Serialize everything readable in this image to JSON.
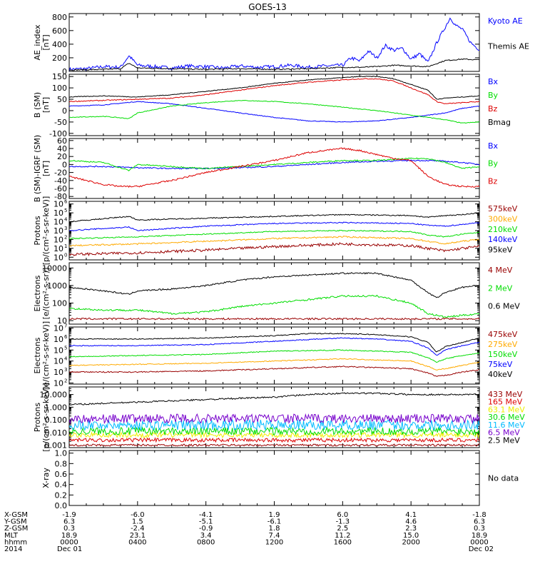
{
  "title": "GOES-13",
  "no_data_label": "No data",
  "colors": {
    "black": "#000000",
    "blue": "#0000ff",
    "green": "#00dd00",
    "red": "#dd0000",
    "orange": "#ffaa00",
    "darkred": "#990000",
    "cyan": "#00bbff",
    "purple": "#7700cc",
    "yellow": "#eeee00",
    "teal": "#009999",
    "darkblue": "#0000cc"
  },
  "footer": {
    "row_labels": [
      "X-GSM",
      "Y-GSM",
      "Z-GSM",
      "MLT",
      "hhmm",
      "2014"
    ],
    "columns": [
      [
        "-1.9",
        "6.3",
        "0.3",
        "18.9",
        "0000",
        "Dec 01"
      ],
      [
        "-6.0",
        "1.5",
        "-2.4",
        "23.1",
        "0400",
        ""
      ],
      [
        "-4.1",
        "-5.1",
        "-0.9",
        "3.4",
        "0800",
        ""
      ],
      [
        "1.9",
        "-6.1",
        "1.8",
        "7.4",
        "1200",
        ""
      ],
      [
        "6.0",
        "-1.3",
        "2.5",
        "11.2",
        "1600",
        ""
      ],
      [
        "4.1",
        "4.6",
        "2.3",
        "15.0",
        "2000",
        ""
      ],
      [
        "-1.8",
        "6.3",
        "0.3",
        "18.9",
        "0000",
        "Dec 02"
      ]
    ]
  },
  "chart_data": [
    {
      "type": "line",
      "ylabel": [
        "AE_index",
        "[nT]"
      ],
      "yticks": [
        "0",
        "200",
        "400",
        "600",
        "800"
      ],
      "ylim": [
        0,
        850
      ],
      "x_hours": [
        0,
        24
      ],
      "series": [
        {
          "name": "Kyoto AE",
          "color": "blue",
          "x": [
            0,
            1,
            2,
            3,
            3.5,
            4,
            5,
            6,
            7,
            8,
            9,
            10,
            11,
            12,
            13,
            14,
            15,
            16,
            16.5,
            17,
            17.5,
            18,
            18.5,
            19,
            19.5,
            20,
            20.5,
            21,
            21.5,
            22,
            22.3,
            22.6,
            23,
            23.5,
            24
          ],
          "y": [
            30,
            40,
            70,
            60,
            230,
            90,
            70,
            50,
            80,
            70,
            50,
            80,
            60,
            70,
            90,
            60,
            80,
            90,
            200,
            150,
            300,
            200,
            380,
            310,
            340,
            180,
            260,
            130,
            420,
            650,
            790,
            680,
            620,
            420,
            320
          ]
        },
        {
          "name": "Themis AE",
          "color": "black",
          "x": [
            0,
            2,
            3,
            3.5,
            4,
            6,
            8,
            10,
            12,
            14,
            16,
            17,
            18,
            19,
            20,
            21,
            22,
            23,
            24
          ],
          "y": [
            20,
            30,
            40,
            120,
            50,
            40,
            30,
            40,
            30,
            40,
            60,
            60,
            70,
            90,
            80,
            70,
            160,
            180,
            170
          ]
        }
      ]
    },
    {
      "type": "line",
      "ylabel": [
        "B (SM)",
        "[nT]"
      ],
      "yticks": [
        "-100",
        "-50",
        "0",
        "50",
        "100",
        "150"
      ],
      "ylim": [
        -110,
        160
      ],
      "x_hours": [
        0,
        24
      ],
      "series": [
        {
          "name": "Bx",
          "color": "blue",
          "x": [
            0,
            2,
            4,
            6,
            8,
            10,
            12,
            14,
            16,
            18,
            20,
            21,
            22,
            23,
            24
          ],
          "y": [
            20,
            25,
            40,
            30,
            10,
            -10,
            -30,
            -45,
            -50,
            -45,
            -30,
            -20,
            -10,
            10,
            20
          ]
        },
        {
          "name": "By",
          "color": "green",
          "x": [
            0,
            2,
            3.5,
            4,
            6,
            8,
            10,
            12,
            14,
            16,
            18,
            20,
            21,
            22,
            23,
            24
          ],
          "y": [
            -30,
            -25,
            -35,
            -10,
            20,
            35,
            45,
            40,
            30,
            15,
            0,
            -20,
            -30,
            -40,
            -55,
            -50
          ]
        },
        {
          "name": "Bz",
          "color": "red",
          "x": [
            0,
            2,
            4,
            6,
            8,
            10,
            12,
            14,
            16,
            17,
            18,
            19,
            20,
            21,
            21.5,
            22,
            23,
            24
          ],
          "y": [
            40,
            45,
            50,
            55,
            70,
            90,
            110,
            125,
            135,
            140,
            140,
            130,
            100,
            70,
            40,
            30,
            35,
            40
          ]
        },
        {
          "name": "Bmag",
          "color": "black",
          "x": [
            0,
            2,
            4,
            6,
            8,
            10,
            12,
            14,
            16,
            17,
            18,
            19,
            20,
            21,
            21.5,
            22,
            23,
            24
          ],
          "y": [
            60,
            65,
            60,
            70,
            85,
            100,
            120,
            135,
            145,
            150,
            150,
            140,
            115,
            90,
            50,
            55,
            60,
            65
          ]
        }
      ]
    },
    {
      "type": "line",
      "ylabel": [
        "B (SM)-IGRF (SM)",
        "[nT]"
      ],
      "yticks": [
        "-80",
        "-60",
        "-40",
        "-20",
        "0",
        "20",
        "40",
        "60"
      ],
      "ylim": [
        -85,
        65
      ],
      "x_hours": [
        0,
        24
      ],
      "series": [
        {
          "name": "Bx",
          "color": "blue",
          "x": [
            0,
            2,
            4,
            6,
            8,
            10,
            12,
            14,
            16,
            18,
            20,
            21,
            22,
            23,
            24
          ],
          "y": [
            -5,
            -5,
            -8,
            -10,
            -10,
            -8,
            -5,
            0,
            5,
            8,
            10,
            10,
            8,
            5,
            0
          ]
        },
        {
          "name": "By",
          "color": "green",
          "x": [
            0,
            2,
            3.5,
            4,
            6,
            8,
            10,
            12,
            14,
            16,
            18,
            20,
            21,
            22,
            23,
            24
          ],
          "y": [
            10,
            5,
            -15,
            0,
            -5,
            -10,
            -5,
            0,
            5,
            10,
            10,
            15,
            15,
            5,
            -10,
            -5
          ]
        },
        {
          "name": "Bz",
          "color": "red",
          "x": [
            0,
            1,
            2,
            3,
            4,
            6,
            8,
            10,
            12,
            13,
            14,
            15,
            16,
            17,
            18,
            19,
            20,
            21,
            22,
            23,
            24
          ],
          "y": [
            -30,
            -40,
            -50,
            -55,
            -55,
            -40,
            -20,
            -5,
            10,
            20,
            30,
            35,
            40,
            35,
            25,
            15,
            10,
            -30,
            -50,
            -55,
            -55
          ]
        }
      ]
    },
    {
      "type": "line",
      "log": true,
      "ylabel": [
        "Protons",
        "[p/(cm²-s-sr-keV)]"
      ],
      "ytick_exps": [
        0,
        1,
        2,
        3,
        4,
        5,
        6
      ],
      "ylim_log": [
        -0.3,
        6.3
      ],
      "x_hours": [
        0,
        24
      ],
      "series": [
        {
          "name": "575keV",
          "color": "darkred",
          "x": [
            0,
            4,
            8,
            12,
            16,
            20,
            21,
            22,
            23,
            24
          ],
          "y": [
            0.3,
            0.5,
            0.8,
            1.2,
            1.5,
            1.3,
            1.0,
            0.7,
            1.0,
            1.2
          ]
        },
        {
          "name": "300keV",
          "color": "orange",
          "x": [
            0,
            4,
            8,
            12,
            16,
            20,
            21,
            22,
            23,
            24
          ],
          "y": [
            1.3,
            1.5,
            1.8,
            2.1,
            2.3,
            2.1,
            1.8,
            1.5,
            1.8,
            2.0
          ]
        },
        {
          "name": "210keV",
          "color": "green",
          "x": [
            0,
            4,
            8,
            12,
            16,
            20,
            21,
            22,
            23,
            24
          ],
          "y": [
            2.1,
            2.3,
            2.6,
            2.9,
            3.0,
            2.9,
            2.5,
            2.3,
            2.6,
            2.8
          ]
        },
        {
          "name": "140keV",
          "color": "blue",
          "x": [
            0,
            3.5,
            4,
            8,
            12,
            16,
            20,
            21,
            22,
            23,
            24
          ],
          "y": [
            3.0,
            3.4,
            3.0,
            3.5,
            3.8,
            3.9,
            3.8,
            3.6,
            3.5,
            3.7,
            3.9
          ]
        },
        {
          "name": "95keV",
          "color": "black",
          "x": [
            0,
            3.5,
            4,
            8,
            12,
            16,
            20,
            21,
            22,
            23,
            24
          ],
          "y": [
            4.0,
            4.6,
            4.2,
            4.4,
            4.6,
            4.8,
            4.7,
            4.5,
            4.7,
            4.8,
            5.0
          ]
        }
      ]
    },
    {
      "type": "line",
      "log": true,
      "ylabel": [
        "Electrons",
        "[e/(cm²-s-sr)]"
      ],
      "ytick_exps": [
        1,
        2,
        3,
        4
      ],
      "ytick_labels": [
        "10",
        "100",
        "1000",
        "10000"
      ],
      "ylim_log": [
        0.8,
        4.3
      ],
      "x_hours": [
        0,
        24
      ],
      "series": [
        {
          "name": "4 MeV",
          "color": "darkred",
          "x": [
            0,
            24
          ],
          "y": [
            1.1,
            1.1
          ]
        },
        {
          "name": "2 MeV",
          "color": "green",
          "x": [
            0,
            2,
            4,
            6,
            8,
            10,
            12,
            14,
            16,
            18,
            20,
            21,
            22,
            23,
            24
          ],
          "y": [
            1.7,
            1.6,
            1.6,
            1.4,
            1.5,
            1.8,
            2.0,
            2.2,
            2.4,
            2.4,
            2.0,
            1.4,
            1.2,
            1.3,
            1.4
          ]
        },
        {
          "name": "0.6 MeV",
          "color": "black",
          "x": [
            0,
            2,
            3.5,
            4,
            6,
            8,
            10,
            12,
            14,
            16,
            18,
            20,
            21,
            21.5,
            22,
            23,
            24
          ],
          "y": [
            2.9,
            2.7,
            2.5,
            2.7,
            2.8,
            3.0,
            3.3,
            3.5,
            3.6,
            3.7,
            3.7,
            3.3,
            2.6,
            2.3,
            2.6,
            2.9,
            3.0
          ]
        }
      ]
    },
    {
      "type": "line",
      "log": true,
      "ylabel": [
        "Electrons",
        "[e/(cm²-s-sr-keV)]"
      ],
      "ytick_exps": [
        2,
        3,
        4,
        5,
        6,
        7
      ],
      "ylim_log": [
        1.9,
        7.1
      ],
      "x_hours": [
        0,
        24
      ],
      "series": [
        {
          "name": "475keV",
          "color": "darkred",
          "x": [
            0,
            4,
            8,
            12,
            16,
            20,
            21,
            21.5,
            22,
            23,
            24
          ],
          "y": [
            3.0,
            3.0,
            3.1,
            3.3,
            3.5,
            3.3,
            2.9,
            2.6,
            2.7,
            3.0,
            3.2
          ]
        },
        {
          "name": "275keV",
          "color": "orange",
          "x": [
            0,
            4,
            8,
            12,
            16,
            20,
            21,
            21.5,
            22,
            23,
            24
          ],
          "y": [
            3.6,
            3.7,
            3.8,
            4.0,
            4.2,
            4.0,
            3.5,
            3.2,
            3.3,
            3.6,
            3.9
          ]
        },
        {
          "name": "150keV",
          "color": "green",
          "x": [
            0,
            4,
            8,
            12,
            16,
            20,
            21,
            21.5,
            22,
            23,
            24
          ],
          "y": [
            4.4,
            4.5,
            4.6,
            4.9,
            5.0,
            4.8,
            4.3,
            3.9,
            4.2,
            4.5,
            4.7
          ]
        },
        {
          "name": "75keV",
          "color": "blue",
          "x": [
            0,
            4,
            8,
            12,
            16,
            18,
            20,
            21,
            21.5,
            22,
            23,
            24
          ],
          "y": [
            5.4,
            5.4,
            5.5,
            5.8,
            6.1,
            6.0,
            5.8,
            5.2,
            4.5,
            5.0,
            5.4,
            5.7
          ]
        },
        {
          "name": "40keV",
          "color": "black",
          "x": [
            0,
            4,
            8,
            12,
            14,
            16,
            18,
            20,
            21,
            21.5,
            22,
            23,
            24
          ],
          "y": [
            6.0,
            6.0,
            6.1,
            6.3,
            6.5,
            6.5,
            6.4,
            6.2,
            5.7,
            4.8,
            5.3,
            5.7,
            6.1
          ]
        }
      ]
    },
    {
      "type": "line",
      "log": true,
      "ylabel": [
        "Protons",
        "[p/(cm²-s-sr-keV)]"
      ],
      "ytick_exps": [
        -3,
        -2,
        -1,
        0,
        1
      ],
      "ytick_labels": [
        "0.001",
        "0.010",
        "0.100",
        "1.000",
        "10.000"
      ],
      "ylim_log": [
        -3.2,
        1.6
      ],
      "x_hours": [
        0,
        24
      ],
      "series": [
        {
          "name": "433 MeV",
          "color": "darkred",
          "x": [
            0,
            24
          ],
          "y": [
            -3.0,
            -3.0
          ]
        },
        {
          "name": "165 MeV",
          "color": "red",
          "x": [
            0,
            24
          ],
          "y": [
            -2.6,
            -2.6
          ]
        },
        {
          "name": "63.1 MeV",
          "color": "yellow",
          "x": [
            0,
            24
          ],
          "y": [
            -2.2,
            -2.2
          ]
        },
        {
          "name": "30.6 MeV",
          "color": "green",
          "x": [
            0,
            24
          ],
          "y": [
            -1.9,
            -1.9
          ]
        },
        {
          "name": "11.6 MeV",
          "color": "cyan",
          "x": [
            0,
            24
          ],
          "y": [
            -1.4,
            -1.4
          ]
        },
        {
          "name": "6.5 MeV",
          "color": "purple",
          "x": [
            0,
            24
          ],
          "y": [
            -0.9,
            -0.9
          ]
        },
        {
          "name": "2.5 MeV",
          "color": "black",
          "x": [
            0,
            4,
            8,
            12,
            14,
            16,
            18,
            20,
            22,
            24
          ],
          "y": [
            0.2,
            0.4,
            0.6,
            0.8,
            1.0,
            1.1,
            1.1,
            1.0,
            1.0,
            1.0
          ]
        }
      ]
    },
    {
      "type": "line",
      "ylabel": [
        "X-ray"
      ],
      "yticks": [
        "0.0",
        "0.2",
        "0.4",
        "0.6",
        "0.8",
        "1.0"
      ],
      "ylim": [
        0,
        1.05
      ],
      "x_hours": [
        0,
        24
      ],
      "series": []
    }
  ]
}
